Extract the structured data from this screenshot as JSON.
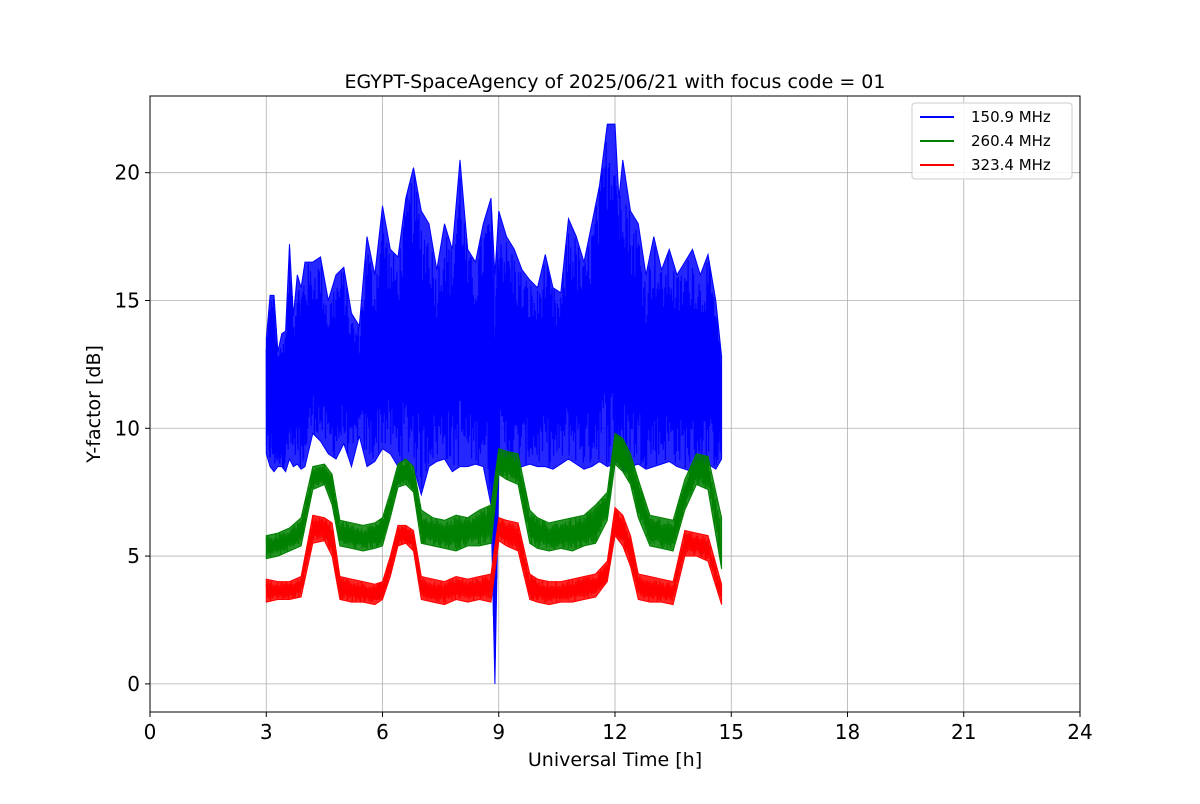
{
  "chart_data": {
    "type": "line",
    "title": "EGYPT-SpaceAgency of 2025/06/21 with focus code = 01",
    "xlabel": "Universal Time [h]",
    "ylabel": "Y-factor [dB]",
    "xlim": [
      0,
      24
    ],
    "ylim": [
      -1.1,
      23
    ],
    "xticks": [
      0,
      3,
      6,
      9,
      12,
      15,
      18,
      21,
      24
    ],
    "yticks": [
      0,
      5,
      10,
      15,
      20
    ],
    "grid": true,
    "legend_position": "top-right",
    "series": [
      {
        "name": "150.9 MHz",
        "color": "#0000ff",
        "x": [
          3.0,
          3.1,
          3.2,
          3.3,
          3.4,
          3.5,
          3.6,
          3.7,
          3.8,
          3.9,
          4.0,
          4.2,
          4.4,
          4.6,
          4.8,
          5.0,
          5.2,
          5.4,
          5.6,
          5.8,
          6.0,
          6.2,
          6.4,
          6.6,
          6.8,
          7.0,
          7.2,
          7.4,
          7.6,
          7.8,
          8.0,
          8.2,
          8.4,
          8.6,
          8.8,
          8.9,
          9.0,
          9.2,
          9.4,
          9.6,
          9.8,
          10.0,
          10.2,
          10.4,
          10.6,
          10.8,
          11.0,
          11.2,
          11.4,
          11.6,
          11.8,
          12.0,
          12.1,
          12.2,
          12.4,
          12.6,
          12.8,
          13.0,
          13.2,
          13.4,
          13.6,
          13.8,
          14.0,
          14.2,
          14.4,
          14.6,
          14.75
        ],
        "upper": [
          13.5,
          15.2,
          15.2,
          13.0,
          13.7,
          13.8,
          17.2,
          14.4,
          16.0,
          15.5,
          16.5,
          16.5,
          16.7,
          15.0,
          16.0,
          16.3,
          14.5,
          14.0,
          17.5,
          16.0,
          18.7,
          17.0,
          16.7,
          19.0,
          20.2,
          18.5,
          18.0,
          16.2,
          18.0,
          17.0,
          20.5,
          17.0,
          16.5,
          18.0,
          19.0,
          16.0,
          18.5,
          17.5,
          17.0,
          16.2,
          15.8,
          15.5,
          16.8,
          15.5,
          15.3,
          18.2,
          17.5,
          16.5,
          18.0,
          19.5,
          21.9,
          21.9,
          19.0,
          20.5,
          18.5,
          18.0,
          16.0,
          17.5,
          16.2,
          17.0,
          16.0,
          16.5,
          17.0,
          16.0,
          16.8,
          15.0,
          12.8
        ],
        "lower": [
          9.0,
          8.5,
          8.3,
          8.5,
          8.5,
          8.3,
          8.8,
          8.5,
          8.6,
          8.4,
          8.5,
          9.8,
          9.5,
          9.0,
          8.8,
          9.4,
          8.5,
          9.7,
          8.5,
          8.7,
          9.2,
          9.0,
          8.5,
          8.8,
          8.5,
          7.4,
          8.5,
          8.7,
          8.8,
          8.3,
          8.5,
          8.5,
          8.6,
          8.5,
          7.0,
          0.0,
          8.2,
          8.5,
          8.3,
          8.5,
          8.6,
          8.5,
          8.5,
          8.4,
          8.6,
          8.8,
          8.6,
          8.4,
          8.5,
          8.7,
          8.5,
          8.6,
          8.8,
          8.3,
          8.5,
          8.6,
          8.4,
          8.5,
          8.6,
          8.7,
          8.5,
          8.4,
          8.3,
          8.5,
          8.6,
          8.4,
          8.8
        ]
      },
      {
        "name": "260.4 MHz",
        "color": "#008000",
        "x": [
          3.0,
          3.3,
          3.6,
          3.9,
          4.2,
          4.5,
          4.7,
          4.9,
          5.2,
          5.5,
          5.8,
          6.0,
          6.2,
          6.4,
          6.6,
          6.8,
          7.0,
          7.3,
          7.6,
          7.9,
          8.2,
          8.5,
          8.8,
          9.0,
          9.2,
          9.5,
          9.8,
          10.0,
          10.3,
          10.6,
          10.9,
          11.2,
          11.5,
          11.8,
          12.0,
          12.2,
          12.4,
          12.6,
          12.9,
          13.2,
          13.5,
          13.8,
          14.1,
          14.4,
          14.75
        ],
        "upper": [
          5.8,
          5.9,
          6.1,
          6.5,
          8.5,
          8.6,
          8.2,
          6.4,
          6.3,
          6.2,
          6.3,
          6.5,
          7.5,
          8.6,
          8.8,
          8.5,
          6.8,
          6.5,
          6.4,
          6.6,
          6.5,
          6.8,
          7.0,
          9.2,
          9.1,
          9.0,
          6.8,
          6.5,
          6.3,
          6.4,
          6.5,
          6.6,
          7.0,
          7.5,
          9.8,
          9.6,
          9.0,
          8.0,
          6.6,
          6.5,
          6.4,
          8.0,
          9.0,
          8.9,
          6.5
        ],
        "lower": [
          4.9,
          5.0,
          5.2,
          5.4,
          7.6,
          7.8,
          7.0,
          5.4,
          5.3,
          5.2,
          5.3,
          5.4,
          6.5,
          7.7,
          7.8,
          7.5,
          5.5,
          5.4,
          5.3,
          5.2,
          5.4,
          5.4,
          5.5,
          8.2,
          8.0,
          7.8,
          5.5,
          5.3,
          5.2,
          5.3,
          5.2,
          5.4,
          5.5,
          6.4,
          8.6,
          8.3,
          7.8,
          6.5,
          5.4,
          5.3,
          5.2,
          6.8,
          7.8,
          7.6,
          4.5
        ]
      },
      {
        "name": "323.4 MHz",
        "color": "#ff0000",
        "x": [
          3.0,
          3.3,
          3.6,
          3.9,
          4.2,
          4.5,
          4.7,
          4.9,
          5.2,
          5.5,
          5.8,
          6.0,
          6.2,
          6.4,
          6.6,
          6.8,
          7.0,
          7.3,
          7.6,
          7.9,
          8.2,
          8.5,
          8.8,
          9.0,
          9.2,
          9.5,
          9.8,
          10.0,
          10.3,
          10.6,
          10.9,
          11.2,
          11.5,
          11.8,
          12.0,
          12.2,
          12.4,
          12.6,
          12.9,
          13.2,
          13.5,
          13.8,
          14.1,
          14.4,
          14.75
        ],
        "upper": [
          4.1,
          4.0,
          4.0,
          4.2,
          6.6,
          6.5,
          6.3,
          4.2,
          4.1,
          4.0,
          3.9,
          4.0,
          5.0,
          6.2,
          6.2,
          6.0,
          4.2,
          4.1,
          4.0,
          4.2,
          4.1,
          4.2,
          4.3,
          6.5,
          6.4,
          6.3,
          4.3,
          4.1,
          4.0,
          4.0,
          4.1,
          4.2,
          4.3,
          4.8,
          6.9,
          6.6,
          5.8,
          4.3,
          4.2,
          4.1,
          4.0,
          6.0,
          5.9,
          5.8,
          3.9
        ],
        "lower": [
          3.2,
          3.3,
          3.3,
          3.4,
          5.5,
          5.6,
          5.0,
          3.3,
          3.2,
          3.2,
          3.1,
          3.3,
          4.2,
          5.4,
          5.5,
          5.2,
          3.3,
          3.2,
          3.1,
          3.3,
          3.2,
          3.3,
          3.2,
          5.6,
          5.4,
          5.2,
          3.3,
          3.2,
          3.1,
          3.2,
          3.2,
          3.3,
          3.4,
          4.0,
          5.8,
          5.4,
          4.6,
          3.3,
          3.2,
          3.2,
          3.1,
          5.0,
          5.0,
          4.8,
          3.1
        ]
      }
    ]
  }
}
